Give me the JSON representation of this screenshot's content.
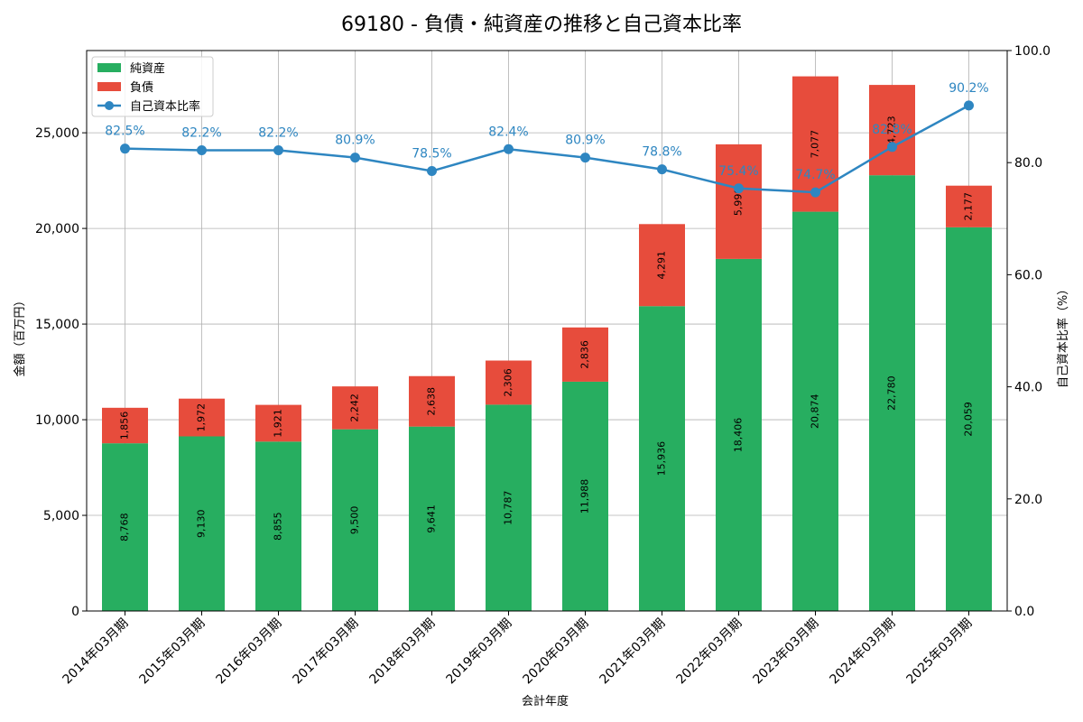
{
  "chart_data": {
    "type": "bar",
    "title": "69180 - 負債・純資産の推移と自己資本比率",
    "xlabel": "会計年度",
    "ylabel": "金額（百万円）",
    "y2label": "自己資本比率（%）",
    "ylim": [
      0,
      29300
    ],
    "y2lim": [
      0,
      100
    ],
    "yticks": [
      0,
      5000,
      10000,
      15000,
      20000,
      25000
    ],
    "y2ticks": [
      0,
      20,
      40,
      60,
      80,
      100
    ],
    "grid": true,
    "legend_position": "top-left",
    "categories": [
      "2014年03月期",
      "2015年03月期",
      "2016年03月期",
      "2017年03月期",
      "2018年03月期",
      "2019年03月期",
      "2020年03月期",
      "2021年03月期",
      "2022年03月期",
      "2023年03月期",
      "2024年03月期",
      "2025年03月期"
    ],
    "series": [
      {
        "name": "純資産",
        "kind": "bar",
        "stack": "bottom",
        "color": "#27ae60",
        "values": [
          8768,
          9130,
          8855,
          9500,
          9641,
          10787,
          11988,
          15936,
          18406,
          20874,
          22780,
          20059
        ]
      },
      {
        "name": "負債",
        "kind": "bar",
        "stack": "top",
        "color": "#e74c3c",
        "values": [
          1856,
          1972,
          1921,
          2242,
          2638,
          2306,
          2836,
          4291,
          5990,
          7077,
          4723,
          2177
        ]
      },
      {
        "name": "自己資本比率",
        "kind": "line",
        "axis": "right",
        "color": "#2e86c1",
        "values": [
          82.5,
          82.2,
          82.2,
          80.9,
          78.5,
          82.4,
          80.9,
          78.8,
          75.4,
          74.7,
          82.8,
          90.2
        ]
      }
    ]
  }
}
